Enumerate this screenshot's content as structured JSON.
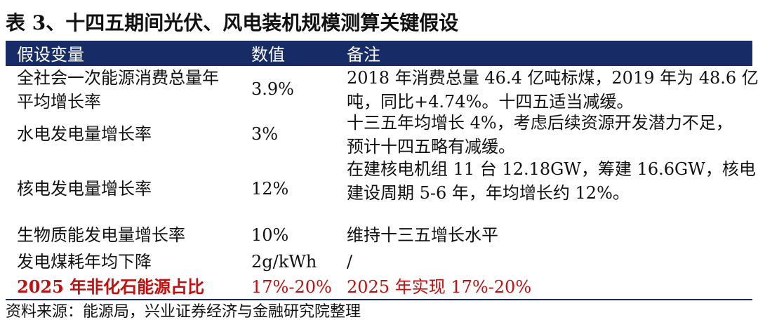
{
  "title": "表 3、十四五期间光伏、风电装机规模测算关键假设",
  "headers": [
    "假设变量",
    "数值",
    "备注"
  ],
  "rows": [
    {
      "variable_lines": [
        "全社会一次能源消费总量年",
        "平均增长率"
      ],
      "value": "3.9%",
      "note_lines": [
        "2018 年消费总量 46.4 亿吨标煤，2019 年为 48.6 亿",
        "吨，同比+4.74%。十四五适当减缓。"
      ]
    },
    {
      "variable": "水电发电量增长率",
      "value": "3%",
      "note_lines": [
        "十三五年均增长 4%，考虑后续资源开发潜力不足，",
        "预计十四五略有减缓。"
      ]
    },
    {
      "variable": "核电发电量增长率",
      "value": "12%",
      "note_lines": [
        "在建核电机组 11 台 12.18GW，筹建 16.6GW，核电",
        "建设周期 5-6 年，年均增长约 12%。"
      ]
    },
    {
      "variable": "生物质能发电量增长率",
      "value": "10%",
      "note": "维持十三五增长水平"
    },
    {
      "variable": "发电煤耗年均下降",
      "value": "2g/kWh",
      "note": "/"
    },
    {
      "variable": "2025 年非化石能源占比",
      "value": "17%-20%",
      "note": "2025 年实现 17%-20%"
    }
  ],
  "source": "资料来源：能源局，兴业证券经济与金融研究院整理",
  "colors": {
    "header_bg": "#172B66",
    "header_text": "#ffffff",
    "highlight": "#C01010"
  }
}
